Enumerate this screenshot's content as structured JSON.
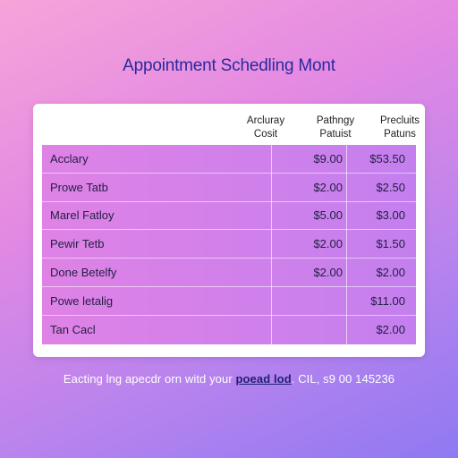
{
  "title": "Appointment Schedling Mont",
  "columns": [
    {
      "line1": "Arcluray",
      "line2": "Cosit"
    },
    {
      "line1": "Pathngy",
      "line2": "Patuist"
    },
    {
      "line1": "Precluits",
      "line2": "Patuns"
    }
  ],
  "rows": [
    {
      "name": "Acclary",
      "v1": "$9.00",
      "v2": "$53.50"
    },
    {
      "name": "Prowe Tatb",
      "v1": "$2.00",
      "v2": "$2.50"
    },
    {
      "name": "Marel Fatloy",
      "v1": "$5.00",
      "v2": "$3.00"
    },
    {
      "name": "Pewir Tetb",
      "v1": "$2.00",
      "v2": "$1.50"
    },
    {
      "name": "Done Betelfy",
      "v1": "$2.00",
      "v2": "$2.00"
    },
    {
      "name": "Powe letalig",
      "v1": "",
      "v2": "$11.00"
    },
    {
      "name": "Tan Cacl",
      "v1": "",
      "v2": "$2.00"
    }
  ],
  "footer": {
    "prefix": "Eacting lng apecdr orn witd your ",
    "link": "poead lod",
    "suffix": ". CIL, s9 00 145236"
  }
}
